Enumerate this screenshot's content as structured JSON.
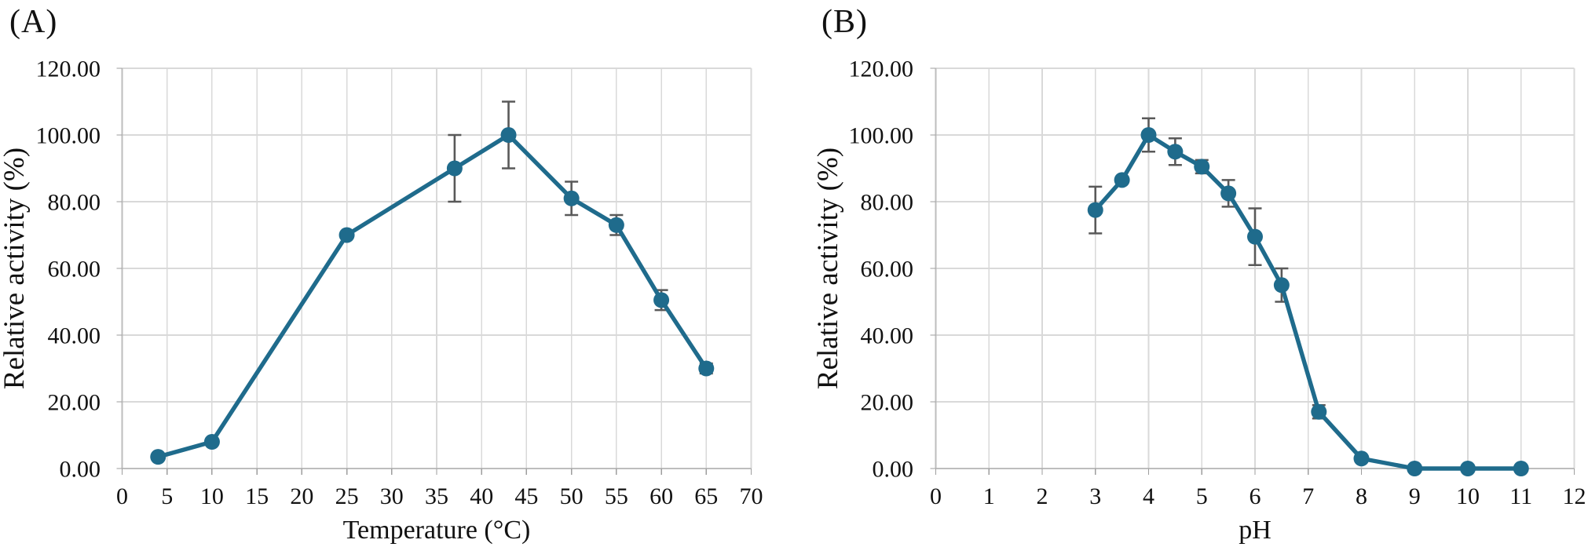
{
  "figure": {
    "description": "Two-panel line figure showing enzyme relative activity versus temperature (A) and pH (B), with error bars",
    "background": "#ffffff"
  },
  "colors": {
    "line": "#1f6b8c",
    "marker": "#1f6b8c",
    "error_bar": "#595959",
    "gridline": "#d9d9d9",
    "axis_line": "#bdbdbd",
    "tick": "#9e9e9e",
    "text": "#111111"
  },
  "chart_data": [
    {
      "type": "line",
      "panel_label": "(A)",
      "title": "",
      "xlabel": "Temperature (°C)",
      "ylabel": "Relative activity (%)",
      "xlim": [
        0,
        70
      ],
      "ylim": [
        0,
        120
      ],
      "xticks": [
        0,
        5,
        10,
        15,
        20,
        25,
        30,
        35,
        40,
        45,
        50,
        55,
        60,
        65,
        70
      ],
      "yticks": [
        0,
        20,
        40,
        60,
        80,
        100,
        120
      ],
      "ytick_labels": [
        "0.00",
        "20.00",
        "40.00",
        "60.00",
        "80.00",
        "100.00",
        "120.00"
      ],
      "grid": true,
      "legend": "none",
      "series": [
        {
          "name": "relative-activity-vs-temperature",
          "x": [
            4,
            10,
            25,
            37,
            43,
            50,
            55,
            60,
            65
          ],
          "y": [
            3.5,
            8,
            70,
            90,
            100,
            81,
            73,
            50.5,
            30
          ],
          "yerr": [
            0,
            0,
            0,
            10,
            10,
            5,
            3,
            3,
            1.5
          ]
        }
      ]
    },
    {
      "type": "line",
      "panel_label": "(B)",
      "title": "",
      "xlabel": "pH",
      "ylabel": "Relative activity (%)",
      "xlim": [
        0,
        12
      ],
      "ylim": [
        0,
        120
      ],
      "xticks": [
        0,
        1,
        2,
        3,
        4,
        5,
        6,
        7,
        8,
        9,
        10,
        11,
        12
      ],
      "yticks": [
        0,
        20,
        40,
        60,
        80,
        100,
        120
      ],
      "ytick_labels": [
        "0.00",
        "20.00",
        "40.00",
        "60.00",
        "80.00",
        "100.00",
        "120.00"
      ],
      "grid": true,
      "legend": "none",
      "series": [
        {
          "name": "relative-activity-vs-ph",
          "x": [
            3,
            3.5,
            4,
            4.5,
            5,
            5.5,
            6,
            6.5,
            7.2,
            8,
            9,
            10,
            11
          ],
          "y": [
            77.5,
            86.5,
            100,
            95,
            90.5,
            82.5,
            69.5,
            55,
            17,
            3,
            0,
            0,
            0
          ],
          "yerr": [
            7,
            0,
            5,
            4,
            2,
            4,
            8.5,
            5,
            2,
            0,
            0,
            0,
            0
          ]
        }
      ]
    }
  ]
}
